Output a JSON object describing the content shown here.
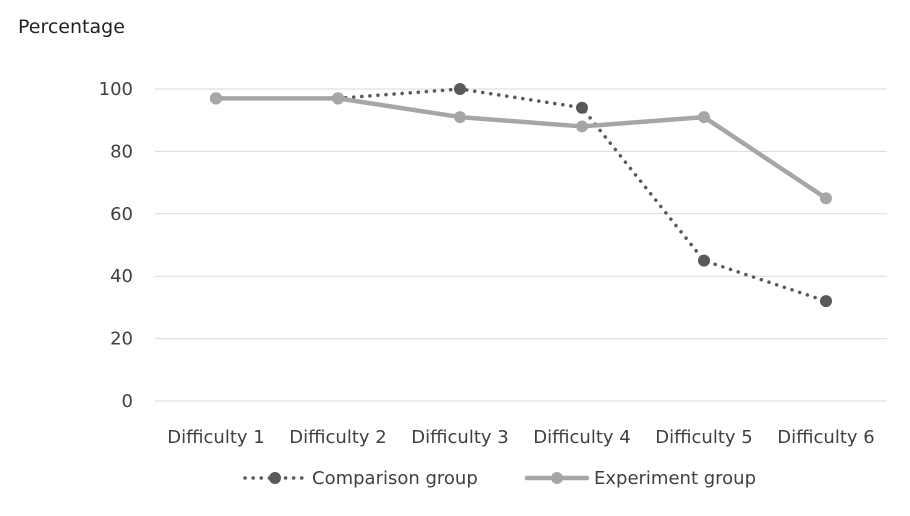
{
  "chart_data": {
    "type": "line",
    "ylabel": "Percentage",
    "xlabel": "",
    "categories": [
      "Difficulty 1",
      "Difficulty 2",
      "Difficulty 3",
      "Difficulty 4",
      "Difficulty 5",
      "Difficulty 6"
    ],
    "ylim": [
      0,
      100
    ],
    "yticks": [
      0,
      20,
      40,
      60,
      80,
      100
    ],
    "grid": true,
    "legend": "bottom",
    "series": [
      {
        "name": "Comparison group",
        "values": [
          97,
          97,
          100,
          94,
          45,
          32
        ],
        "color": "#595959",
        "style": "dotted"
      },
      {
        "name": "Experiment group",
        "values": [
          97,
          97,
          91,
          88,
          91,
          65
        ],
        "color": "#a6a6a6",
        "style": "solid"
      }
    ]
  }
}
